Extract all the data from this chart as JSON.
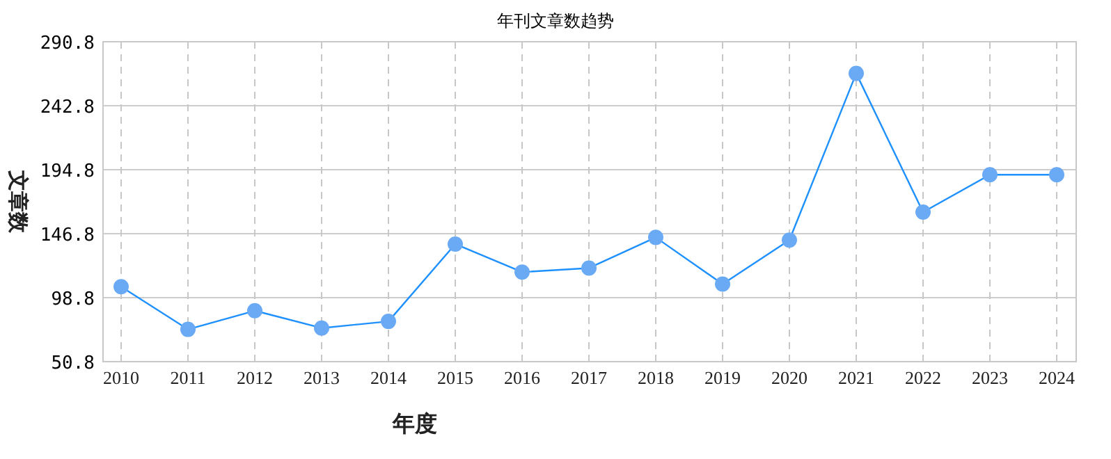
{
  "chart_data": {
    "type": "line",
    "title": "年刊文章数趋势",
    "xlabel": "年度",
    "ylabel": "文章数",
    "categories": [
      "2010",
      "2011",
      "2012",
      "2013",
      "2014",
      "2015",
      "2016",
      "2017",
      "2018",
      "2019",
      "2020",
      "2021",
      "2022",
      "2023",
      "2024"
    ],
    "series": [
      {
        "color": "#1e90ff",
        "values": [
          107,
          75,
          89,
          76,
          81,
          139,
          118,
          121,
          144,
          109,
          142,
          267,
          163,
          191,
          191
        ]
      }
    ],
    "ylim": [
      50.8,
      290.8
    ],
    "yticks": [
      {
        "value": 50.8,
        "label": "50.8"
      },
      {
        "value": 98.8,
        "label": "98.8"
      },
      {
        "value": 146.8,
        "label": "146.8"
      },
      {
        "value": 194.8,
        "label": "194.8"
      },
      {
        "value": 242.8,
        "label": "242.8"
      },
      {
        "value": 290.8,
        "label": "290.8"
      }
    ],
    "grid": true,
    "marker": "circle",
    "line_style": "solid"
  }
}
